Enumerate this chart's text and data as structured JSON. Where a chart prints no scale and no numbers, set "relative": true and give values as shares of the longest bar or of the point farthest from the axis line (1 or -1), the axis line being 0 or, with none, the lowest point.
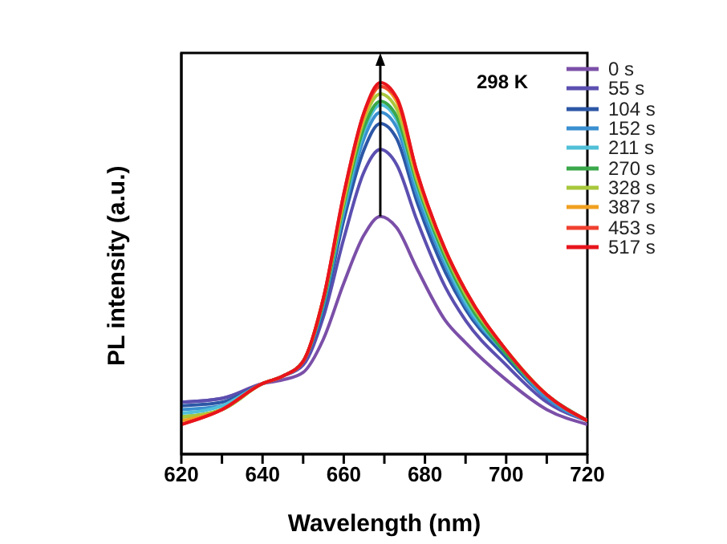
{
  "chart_data": {
    "type": "line",
    "relative": true,
    "xlabel": "Wavelength (nm)",
    "ylabel": "PL intensity (a.u.)",
    "annotations": [
      "298 K"
    ],
    "x": [
      620,
      630,
      640,
      645,
      650,
      655,
      660,
      665,
      669,
      673,
      678,
      685,
      690,
      700,
      710,
      720
    ],
    "xlim": [
      620,
      720
    ],
    "xticks": [
      620,
      {
        "value": 630,
        "label": null
      },
      640,
      {
        "value": 650,
        "label": null
      },
      660,
      {
        "value": 670,
        "label": null
      },
      680,
      {
        "value": 690,
        "label": null
      },
      700,
      {
        "value": 710,
        "label": null
      },
      720
    ],
    "grid": false,
    "legend": "top right",
    "marker": "none",
    "line_style": "solid",
    "series": [
      {
        "name": "0 s",
        "color": "#7b4fa8",
        "values": [
          0.14,
          0.15,
          0.19,
          0.2,
          0.22,
          0.31,
          0.46,
          0.59,
          0.64,
          0.61,
          0.5,
          0.36,
          0.3,
          0.2,
          0.12,
          0.08
        ]
      },
      {
        "name": "55 s",
        "color": "#5b4fb0",
        "values": [
          0.14,
          0.15,
          0.19,
          0.21,
          0.24,
          0.37,
          0.58,
          0.76,
          0.82,
          0.78,
          0.63,
          0.45,
          0.36,
          0.24,
          0.14,
          0.09
        ]
      },
      {
        "name": "104 s",
        "color": "#2d57a6",
        "values": [
          0.13,
          0.14,
          0.19,
          0.21,
          0.25,
          0.39,
          0.63,
          0.82,
          0.89,
          0.85,
          0.68,
          0.49,
          0.39,
          0.26,
          0.15,
          0.09
        ]
      },
      {
        "name": "152 s",
        "color": "#3a8fd0",
        "values": [
          0.12,
          0.13,
          0.19,
          0.21,
          0.25,
          0.4,
          0.65,
          0.85,
          0.92,
          0.88,
          0.7,
          0.51,
          0.4,
          0.27,
          0.15,
          0.09
        ]
      },
      {
        "name": "211 s",
        "color": "#50c0d8",
        "values": [
          0.11,
          0.13,
          0.19,
          0.21,
          0.25,
          0.41,
          0.66,
          0.87,
          0.94,
          0.9,
          0.72,
          0.52,
          0.41,
          0.27,
          0.16,
          0.09
        ]
      },
      {
        "name": "270 s",
        "color": "#3aa84a",
        "values": [
          0.1,
          0.12,
          0.19,
          0.21,
          0.25,
          0.41,
          0.67,
          0.88,
          0.95,
          0.91,
          0.73,
          0.53,
          0.42,
          0.27,
          0.16,
          0.09
        ]
      },
      {
        "name": "328 s",
        "color": "#a8c83c",
        "values": [
          0.1,
          0.12,
          0.19,
          0.21,
          0.25,
          0.42,
          0.68,
          0.9,
          0.97,
          0.93,
          0.74,
          0.54,
          0.43,
          0.28,
          0.16,
          0.09
        ]
      },
      {
        "name": "387 s",
        "color": "#f0a020",
        "values": [
          0.09,
          0.12,
          0.19,
          0.21,
          0.25,
          0.42,
          0.69,
          0.91,
          0.99,
          0.95,
          0.75,
          0.55,
          0.44,
          0.28,
          0.16,
          0.09
        ]
      },
      {
        "name": "453 s",
        "color": "#f04030",
        "values": [
          0.08,
          0.12,
          0.19,
          0.21,
          0.25,
          0.42,
          0.7,
          0.92,
          0.99,
          0.96,
          0.76,
          0.55,
          0.44,
          0.28,
          0.16,
          0.09
        ]
      },
      {
        "name": "517 s",
        "color": "#e8141c",
        "values": [
          0.08,
          0.12,
          0.19,
          0.21,
          0.25,
          0.42,
          0.7,
          0.92,
          1,
          0.96,
          0.76,
          0.55,
          0.44,
          0.28,
          0.16,
          0.09
        ]
      }
    ]
  }
}
